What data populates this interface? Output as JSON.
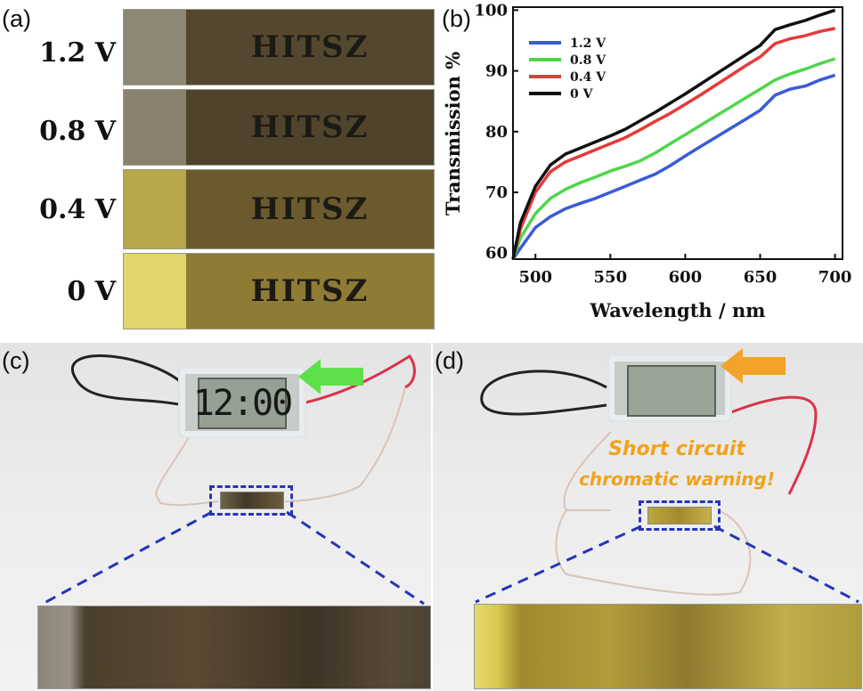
{
  "panels": {
    "a": {
      "label": "(a)",
      "text": "HITSZ",
      "voltages": [
        "1.2 V",
        "0.8 V",
        "0.4 V",
        "0 V"
      ],
      "left_colors": [
        "#8d8876",
        "#8a826f",
        "#b6a84a",
        "#e2d56a"
      ],
      "right_colors": [
        "#54472f",
        "#4f432c",
        "#6a5a2d",
        "#8e7b34"
      ]
    },
    "b": {
      "label": "(b)"
    },
    "c": {
      "label": "(c)",
      "display": "12:00"
    },
    "d": {
      "label": "(d)",
      "warning_line1": "Short circuit",
      "warning_line2": "chromatic warning!"
    }
  },
  "chart_data": {
    "type": "line",
    "xlabel": "Wavelength / nm",
    "ylabel": "Transmission %",
    "xlim": [
      485,
      705
    ],
    "ylim": [
      59,
      100.5
    ],
    "xticks": [
      500,
      550,
      600,
      650,
      700
    ],
    "yticks": [
      60,
      70,
      80,
      90,
      100
    ],
    "legend_position": "top-left",
    "x": [
      485,
      490,
      500,
      510,
      520,
      530,
      540,
      550,
      560,
      570,
      580,
      590,
      600,
      610,
      620,
      630,
      640,
      650,
      660,
      670,
      680,
      690,
      700
    ],
    "series": [
      {
        "name": "1.2 V",
        "color": "#3a5bd9",
        "values": [
          59.0,
          60.8,
          64.2,
          66.0,
          67.3,
          68.2,
          69.0,
          70.0,
          71.0,
          72.0,
          73.0,
          74.4,
          76.0,
          77.5,
          79.0,
          80.5,
          82.0,
          83.5,
          86.0,
          87.0,
          87.5,
          88.5,
          89.3
        ]
      },
      {
        "name": "0.8 V",
        "color": "#4fd64a",
        "values": [
          59.0,
          62.5,
          66.5,
          69.0,
          70.5,
          71.6,
          72.5,
          73.5,
          74.3,
          75.2,
          76.5,
          78.0,
          79.5,
          81.0,
          82.5,
          84.0,
          85.5,
          87.0,
          88.5,
          89.5,
          90.3,
          91.2,
          92.0
        ]
      },
      {
        "name": "0.4 V",
        "color": "#e63a3a",
        "values": [
          59.0,
          64.0,
          70.0,
          73.4,
          75.0,
          76.0,
          77.0,
          78.0,
          79.0,
          80.3,
          81.7,
          83.0,
          84.5,
          86.0,
          87.6,
          89.2,
          90.8,
          92.3,
          94.5,
          95.3,
          95.8,
          96.5,
          97.0
        ]
      },
      {
        "name": "0 V",
        "color": "#111111",
        "values": [
          59.0,
          65.0,
          71.0,
          74.5,
          76.3,
          77.3,
          78.3,
          79.3,
          80.4,
          81.8,
          83.2,
          84.7,
          86.2,
          87.8,
          89.4,
          91.0,
          92.6,
          94.2,
          96.8,
          97.6,
          98.3,
          99.2,
          100.0
        ]
      }
    ]
  }
}
